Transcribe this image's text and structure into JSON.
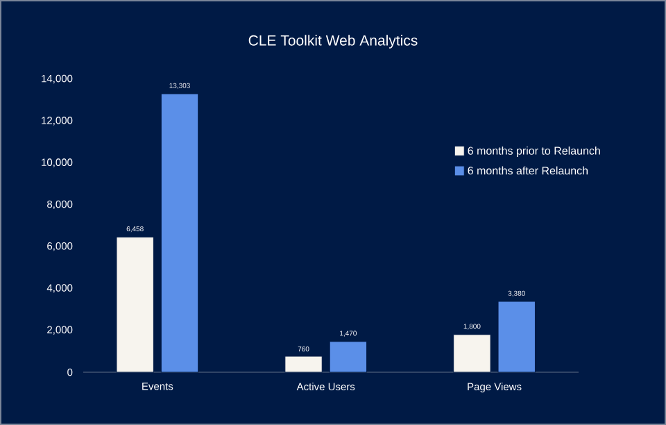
{
  "chart_data": {
    "type": "bar",
    "title": "CLE Toolkit Web Analytics",
    "categories": [
      "Events",
      "Active Users",
      "Page Views"
    ],
    "series": [
      {
        "name": "6 months prior to Relaunch",
        "color": "#f7f4ee",
        "values": [
          6458,
          760,
          1800
        ],
        "value_labels": [
          "6,458",
          "760",
          "1,800"
        ]
      },
      {
        "name": "6 months after Relaunch",
        "color": "#5b8fe8",
        "values": [
          13303,
          1470,
          3380
        ],
        "value_labels": [
          "13,303",
          "1,470",
          "3,380"
        ]
      }
    ],
    "ylim": [
      0,
      14000
    ],
    "yticks": [
      {
        "value": 0,
        "label": "0"
      },
      {
        "value": 2000,
        "label": "2,000"
      },
      {
        "value": 4000,
        "label": "4,000"
      },
      {
        "value": 6000,
        "label": "6,000"
      },
      {
        "value": 8000,
        "label": "8,000"
      },
      {
        "value": 10000,
        "label": "10,000"
      },
      {
        "value": 12000,
        "label": "12,000"
      },
      {
        "value": 14000,
        "label": "14,000"
      }
    ],
    "grid": false,
    "legend": "right"
  }
}
